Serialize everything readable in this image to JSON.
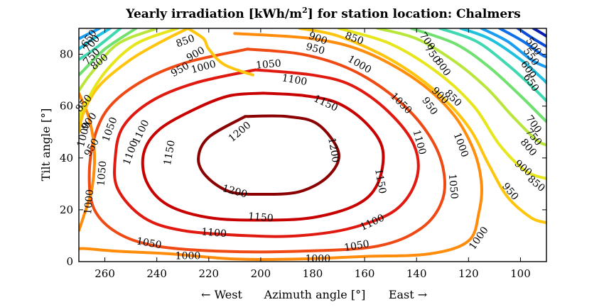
{
  "chart_data": {
    "type": "contour",
    "title": {
      "prefix": "Yearly irradiation [kWh/m",
      "superscript": "2",
      "suffix": "] for station location: Chalmers"
    },
    "xlabel": {
      "left": "← West",
      "center": "Azimuth angle [°]",
      "right": "East →"
    },
    "ylabel": "Tilt angle [°]",
    "xlim": [
      270,
      90
    ],
    "ylim": [
      0,
      90
    ],
    "xticks": [
      260,
      240,
      220,
      200,
      180,
      160,
      140,
      120,
      100
    ],
    "yticks": [
      0,
      20,
      40,
      60,
      80
    ],
    "levels": [
      {
        "value": 1200,
        "color": "#8B0000",
        "points": [
          [
            206,
            56
          ],
          [
            190,
            56
          ],
          [
            178,
            53
          ],
          [
            170,
            42
          ],
          [
            174,
            33
          ],
          [
            185,
            27
          ],
          [
            200,
            26
          ],
          [
            212,
            27
          ],
          [
            221,
            33
          ],
          [
            224,
            40
          ],
          [
            220,
            48
          ],
          [
            206,
            56
          ]
        ]
      },
      {
        "value": 1150,
        "color": "#C80000",
        "points": [
          [
            199,
            65
          ],
          [
            183,
            64
          ],
          [
            170,
            61
          ],
          [
            159,
            53
          ],
          [
            153,
            43
          ],
          [
            155,
            30
          ],
          [
            163,
            22
          ],
          [
            180,
            17
          ],
          [
            200,
            16
          ],
          [
            220,
            17
          ],
          [
            236,
            22
          ],
          [
            244,
            31
          ],
          [
            245,
            42
          ],
          [
            239,
            51
          ],
          [
            225,
            59
          ],
          [
            212,
            64
          ],
          [
            199,
            65
          ]
        ]
      },
      {
        "value": 1100,
        "color": "#E01A10",
        "points": [
          [
            202,
            74
          ],
          [
            180,
            72
          ],
          [
            165,
            68
          ],
          [
            151,
            58
          ],
          [
            141,
            45
          ],
          [
            140,
            32
          ],
          [
            148,
            20
          ],
          [
            165,
            13
          ],
          [
            185,
            10
          ],
          [
            205,
            10
          ],
          [
            230,
            12
          ],
          [
            245,
            17
          ],
          [
            255,
            28
          ],
          [
            256,
            40
          ],
          [
            253,
            52
          ],
          [
            242,
            62
          ],
          [
            225,
            69
          ],
          [
            202,
            74
          ]
        ]
      },
      {
        "value": 1050,
        "color": "#F04A14",
        "points": [
          [
            205,
            82
          ],
          [
            184,
            80
          ],
          [
            165,
            74
          ],
          [
            148,
            63
          ],
          [
            136,
            50
          ],
          [
            130,
            37
          ],
          [
            130,
            24
          ],
          [
            138,
            13
          ],
          [
            155,
            6
          ],
          [
            185,
            4
          ],
          [
            215,
            4
          ],
          [
            240,
            6
          ],
          [
            255,
            11
          ],
          [
            264,
            20
          ],
          [
            266,
            33
          ],
          [
            264,
            48
          ],
          [
            258,
            60
          ],
          [
            245,
            70
          ],
          [
            228,
            77
          ],
          [
            205,
            82
          ]
        ]
      },
      {
        "value": 1000,
        "color": "#FF8C0A",
        "points": [
          [
            210,
            88
          ],
          [
            180,
            86
          ],
          [
            160,
            81
          ],
          [
            140,
            70
          ],
          [
            126,
            57
          ],
          [
            118,
            43
          ],
          [
            115,
            30
          ],
          [
            116,
            19
          ],
          [
            120,
            8
          ],
          [
            135,
            3
          ],
          [
            160,
            2
          ],
          [
            185,
            1
          ],
          [
            210,
            1
          ],
          [
            235,
            3
          ],
          [
            255,
            4
          ],
          [
            267,
            5
          ],
          [
            270,
            5
          ]
        ]
      },
      {
        "value": 1000,
        "color": "#FF8C0A",
        "points": [
          [
            270,
            65
          ],
          [
            266,
            55
          ],
          [
            264,
            42
          ],
          [
            265,
            28
          ],
          [
            268,
            18
          ],
          [
            270,
            12
          ]
        ]
      },
      {
        "value": 950,
        "color": "#FFC40C",
        "points": [
          [
            228,
            90
          ],
          [
            222,
            86
          ],
          [
            220,
            82
          ],
          [
            214,
            76
          ],
          [
            203,
            72
          ]
        ]
      },
      {
        "value": 950,
        "color": "#FFC40C",
        "points": [
          [
            185,
            90
          ],
          [
            170,
            87
          ],
          [
            150,
            78
          ],
          [
            133,
            66
          ],
          [
            120,
            52
          ],
          [
            112,
            37
          ],
          [
            105,
            25
          ],
          [
            96,
            17
          ],
          [
            90,
            15
          ]
        ]
      },
      {
        "value": 950,
        "color": "#FFC40C",
        "points": [
          [
            270,
            50
          ],
          [
            268,
            58
          ],
          [
            262,
            68
          ],
          [
            250,
            78
          ],
          [
            238,
            85
          ],
          [
            228,
            90
          ]
        ]
      },
      {
        "value": 900,
        "color": "#E6E61A",
        "points": [
          [
            232,
            90
          ],
          [
            248,
            84
          ],
          [
            260,
            73
          ],
          [
            268,
            60
          ],
          [
            270,
            55
          ]
        ]
      },
      {
        "value": 900,
        "color": "#E6E61A",
        "points": [
          [
            170,
            90
          ],
          [
            150,
            84
          ],
          [
            132,
            73
          ],
          [
            118,
            60
          ],
          [
            108,
            45
          ],
          [
            98,
            35
          ],
          [
            90,
            32
          ]
        ]
      },
      {
        "value": 850,
        "color": "#B8E63A",
        "points": [
          [
            240,
            90
          ],
          [
            255,
            84
          ],
          [
            265,
            73
          ],
          [
            270,
            66
          ]
        ]
      },
      {
        "value": 850,
        "color": "#B8E63A",
        "points": [
          [
            155,
            90
          ],
          [
            140,
            86
          ],
          [
            125,
            77
          ],
          [
            113,
            67
          ],
          [
            103,
            56
          ],
          [
            94,
            47
          ],
          [
            90,
            45
          ]
        ]
      },
      {
        "value": 800,
        "color": "#70E070",
        "points": [
          [
            248,
            90
          ],
          [
            260,
            82
          ],
          [
            268,
            74
          ],
          [
            270,
            72
          ]
        ]
      },
      {
        "value": 800,
        "color": "#70E070",
        "points": [
          [
            142,
            90
          ],
          [
            125,
            84
          ],
          [
            112,
            75
          ],
          [
            100,
            64
          ],
          [
            92,
            56
          ],
          [
            90,
            54
          ]
        ]
      },
      {
        "value": 750,
        "color": "#40D8B0",
        "points": [
          [
            254,
            90
          ],
          [
            264,
            82
          ],
          [
            270,
            78
          ]
        ]
      },
      {
        "value": 750,
        "color": "#40D8B0",
        "points": [
          [
            131,
            90
          ],
          [
            117,
            85
          ],
          [
            105,
            76
          ],
          [
            95,
            67
          ],
          [
            90,
            62
          ]
        ]
      },
      {
        "value": 700,
        "color": "#20C0E0",
        "points": [
          [
            258,
            90
          ],
          [
            266,
            85
          ],
          [
            270,
            82
          ]
        ]
      },
      {
        "value": 700,
        "color": "#20C0E0",
        "points": [
          [
            123,
            90
          ],
          [
            112,
            86
          ],
          [
            100,
            78
          ],
          [
            92,
            71
          ],
          [
            90,
            69
          ]
        ]
      },
      {
        "value": 650,
        "color": "#1A9CF0",
        "points": [
          [
            262,
            90
          ],
          [
            270,
            86
          ]
        ]
      },
      {
        "value": 650,
        "color": "#1A9CF0",
        "points": [
          [
            115,
            90
          ],
          [
            105,
            85
          ],
          [
            96,
            78
          ],
          [
            90,
            75
          ]
        ]
      },
      {
        "value": 600,
        "color": "#1070E8",
        "points": [
          [
            108,
            90
          ],
          [
            99,
            85
          ],
          [
            92,
            80
          ],
          [
            90,
            79
          ]
        ]
      },
      {
        "value": 550,
        "color": "#0A4CD8",
        "points": [
          [
            101,
            90
          ],
          [
            95,
            86
          ],
          [
            90,
            83
          ]
        ]
      },
      {
        "value": 500,
        "color": "#0A20B0",
        "points": [
          [
            95,
            90
          ],
          [
            90,
            87
          ]
        ]
      }
    ],
    "contour_labels": [
      {
        "text": "1200",
        "x": 208,
        "y": 50,
        "angle": -40
      },
      {
        "text": "1200",
        "x": 172,
        "y": 43,
        "angle": 80
      },
      {
        "text": "1200",
        "x": 210,
        "y": 27,
        "angle": 15
      },
      {
        "text": "1150",
        "x": 175,
        "y": 61,
        "angle": 25
      },
      {
        "text": "1150",
        "x": 235,
        "y": 42,
        "angle": -80
      },
      {
        "text": "1150",
        "x": 154,
        "y": 31,
        "angle": 80
      },
      {
        "text": "1150",
        "x": 200,
        "y": 17,
        "angle": 5
      },
      {
        "text": "1100",
        "x": 187,
        "y": 70,
        "angle": 10
      },
      {
        "text": "1100",
        "x": 246,
        "y": 50,
        "angle": -65
      },
      {
        "text": "1100",
        "x": 250,
        "y": 42,
        "angle": -70
      },
      {
        "text": "1100",
        "x": 139,
        "y": 46,
        "angle": 75
      },
      {
        "text": "1100",
        "x": 157,
        "y": 15,
        "angle": -25
      },
      {
        "text": "1100",
        "x": 218,
        "y": 11,
        "angle": 5
      },
      {
        "text": "1050",
        "x": 197,
        "y": 76,
        "angle": -5
      },
      {
        "text": "1050",
        "x": 146,
        "y": 61,
        "angle": 45
      },
      {
        "text": "1050",
        "x": 258,
        "y": 51,
        "angle": -70
      },
      {
        "text": "1050",
        "x": 261,
        "y": 34,
        "angle": -85
      },
      {
        "text": "1050",
        "x": 126,
        "y": 29,
        "angle": 85
      },
      {
        "text": "1050",
        "x": 163,
        "y": 6,
        "angle": -10
      },
      {
        "text": "1050",
        "x": 243,
        "y": 7,
        "angle": 10
      },
      {
        "text": "1000",
        "x": 222,
        "y": 75,
        "angle": -15
      },
      {
        "text": "1000",
        "x": 162,
        "y": 76,
        "angle": 30
      },
      {
        "text": "1000",
        "x": 268,
        "y": 49,
        "angle": -75
      },
      {
        "text": "1000",
        "x": 123,
        "y": 45,
        "angle": 70
      },
      {
        "text": "1000",
        "x": 266,
        "y": 23,
        "angle": -85
      },
      {
        "text": "1000",
        "x": 116,
        "y": 9,
        "angle": -55
      },
      {
        "text": "1000",
        "x": 228,
        "y": 2,
        "angle": 0
      },
      {
        "text": "1000",
        "x": 178,
        "y": 1,
        "angle": 0
      },
      {
        "text": "950",
        "x": 231,
        "y": 74,
        "angle": -30
      },
      {
        "text": "950",
        "x": 179,
        "y": 82,
        "angle": 15
      },
      {
        "text": "950",
        "x": 135,
        "y": 60,
        "angle": 55
      },
      {
        "text": "950",
        "x": 265,
        "y": 44,
        "angle": -60
      },
      {
        "text": "950",
        "x": 104,
        "y": 27,
        "angle": 50
      },
      {
        "text": "900",
        "x": 225,
        "y": 80,
        "angle": -30
      },
      {
        "text": "900",
        "x": 178,
        "y": 86,
        "angle": 20
      },
      {
        "text": "900",
        "x": 131,
        "y": 64,
        "angle": 45
      },
      {
        "text": "900",
        "x": 266,
        "y": 54,
        "angle": -55
      },
      {
        "text": "900",
        "x": 99,
        "y": 36,
        "angle": 40
      },
      {
        "text": "850",
        "x": 229,
        "y": 85,
        "angle": -20
      },
      {
        "text": "850",
        "x": 164,
        "y": 86,
        "angle": 20
      },
      {
        "text": "850",
        "x": 126,
        "y": 63,
        "angle": 45
      },
      {
        "text": "850",
        "x": 268,
        "y": 61,
        "angle": -50
      },
      {
        "text": "850",
        "x": 94,
        "y": 30,
        "angle": 40
      },
      {
        "text": "800",
        "x": 262,
        "y": 77,
        "angle": -40
      },
      {
        "text": "800",
        "x": 130,
        "y": 75,
        "angle": 55
      },
      {
        "text": "800",
        "x": 97,
        "y": 44,
        "angle": 50
      },
      {
        "text": "750",
        "x": 265,
        "y": 79,
        "angle": -45
      },
      {
        "text": "750",
        "x": 134,
        "y": 80,
        "angle": 55
      },
      {
        "text": "750",
        "x": 95,
        "y": 48,
        "angle": 50
      },
      {
        "text": "700",
        "x": 265,
        "y": 84,
        "angle": -50
      },
      {
        "text": "700",
        "x": 136,
        "y": 85,
        "angle": 55
      },
      {
        "text": "700",
        "x": 95,
        "y": 53,
        "angle": 55
      },
      {
        "text": "650",
        "x": 266,
        "y": 86,
        "angle": -55
      },
      {
        "text": "650",
        "x": 96,
        "y": 69,
        "angle": 55
      },
      {
        "text": "600",
        "x": 97,
        "y": 74,
        "angle": 55
      },
      {
        "text": "550",
        "x": 96,
        "y": 79,
        "angle": 55
      },
      {
        "text": "500",
        "x": 95,
        "y": 83,
        "angle": 55
      }
    ],
    "grid": false,
    "legend": "none"
  }
}
